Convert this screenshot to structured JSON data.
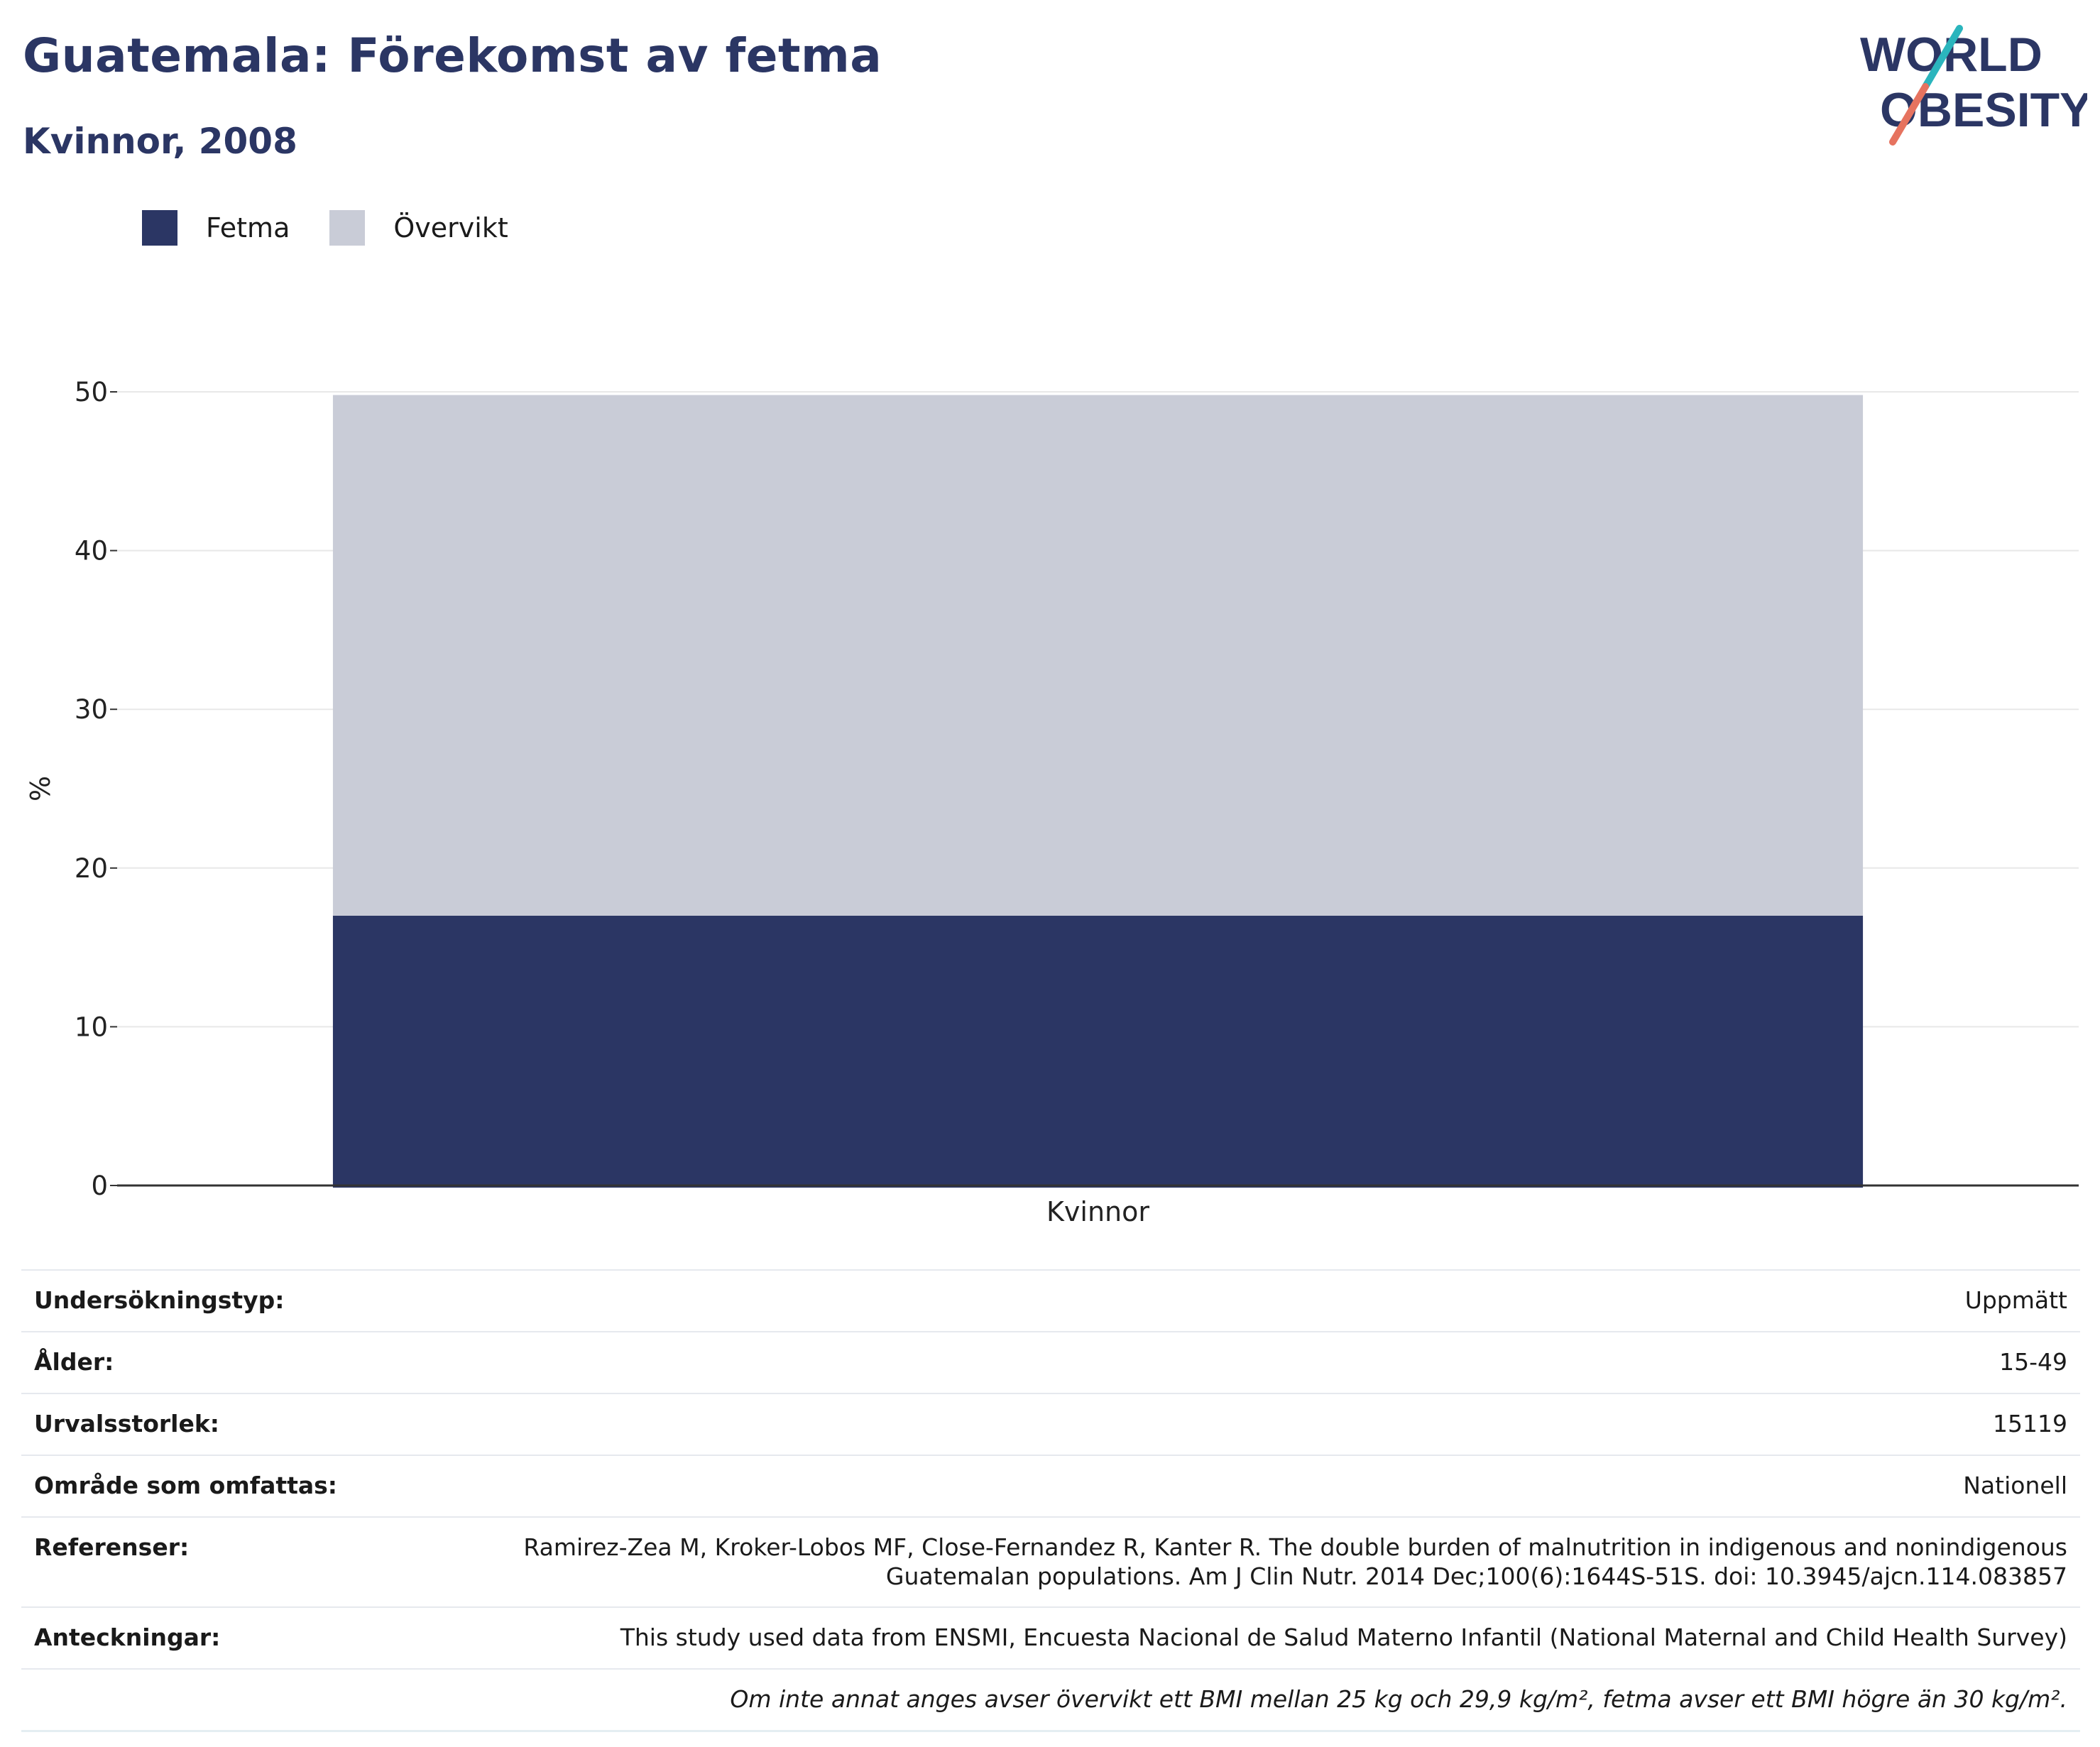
{
  "header": {
    "title": "Guatemala: Förekomst av fetma",
    "subtitle": "Kvinnor, 2008"
  },
  "logo": {
    "line1": "WORLD",
    "line2": "OBESITY",
    "name": "world-obesity-logo"
  },
  "colors": {
    "fetma": "#2b3664",
    "overvikt": "#c9ccd7",
    "title": "#2b3664",
    "logo_teal": "#2bb5bd",
    "logo_coral": "#e6735f"
  },
  "chart_data": {
    "type": "bar",
    "stacked": true,
    "categories": [
      "Kvinnor"
    ],
    "series": [
      {
        "name": "Fetma",
        "values": [
          17.0
        ]
      },
      {
        "name": "Övervikt",
        "values": [
          32.8
        ]
      }
    ],
    "ylabel": "%",
    "xlabel": "",
    "ylim": [
      0,
      50
    ],
    "yticks": [
      "0",
      "10",
      "20",
      "30",
      "40",
      "50"
    ],
    "grid": true,
    "legend_position": "top-left"
  },
  "info": [
    {
      "label": "Undersökningstyp:",
      "value": "Uppmätt"
    },
    {
      "label": "Ålder:",
      "value": "15-49"
    },
    {
      "label": "Urvalsstorlek:",
      "value": "15119"
    },
    {
      "label": "Område som omfattas:",
      "value": "Nationell"
    },
    {
      "label": "Referenser:",
      "value": "Ramirez-Zea M, Kroker-Lobos MF, Close-Fernandez R, Kanter R. The double burden of malnutrition in indigenous and nonindigenous",
      "value2": "Guatemalan populations. Am J Clin Nutr. 2014 Dec;100(6):1644S-51S. doi: 10.3945/ajcn.114.083857"
    },
    {
      "label": "Anteckningar:",
      "value": "This study used data from ENSMI, Encuesta Nacional de Salud Materno Infantil (National Maternal and Child Health Survey)"
    }
  ],
  "footnote": "Om inte annat anges avser övervikt ett BMI mellan 25 kg och 29,9 kg/m², fetma avser ett BMI högre än 30 kg/m²."
}
